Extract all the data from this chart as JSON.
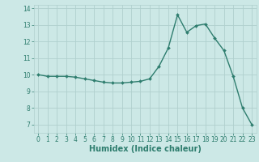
{
  "xlabel": "Humidex (Indice chaleur)",
  "x": [
    0,
    1,
    2,
    3,
    4,
    5,
    6,
    7,
    8,
    9,
    10,
    11,
    12,
    13,
    14,
    15,
    16,
    17,
    18,
    19,
    20,
    21,
    22,
    23
  ],
  "y": [
    10.0,
    9.9,
    9.9,
    9.9,
    9.85,
    9.75,
    9.65,
    9.55,
    9.5,
    9.5,
    9.55,
    9.6,
    9.75,
    10.5,
    11.6,
    13.6,
    12.55,
    12.95,
    13.05,
    12.2,
    11.45,
    9.9,
    8.0,
    7.0
  ],
  "line_color": "#2e7d6e",
  "marker": "D",
  "marker_size": 2.0,
  "line_width": 1.0,
  "bg_color": "#cce8e6",
  "grid_color": "#b0d0ce",
  "tick_color": "#2e7d6e",
  "label_color": "#2e7d6e",
  "ylim": [
    6.5,
    14.2
  ],
  "xlim": [
    -0.5,
    23.5
  ],
  "yticks": [
    7,
    8,
    9,
    10,
    11,
    12,
    13,
    14
  ],
  "xticks": [
    0,
    1,
    2,
    3,
    4,
    5,
    6,
    7,
    8,
    9,
    10,
    11,
    12,
    13,
    14,
    15,
    16,
    17,
    18,
    19,
    20,
    21,
    22,
    23
  ],
  "fontsize_label": 7,
  "fontsize_tick": 5.5
}
